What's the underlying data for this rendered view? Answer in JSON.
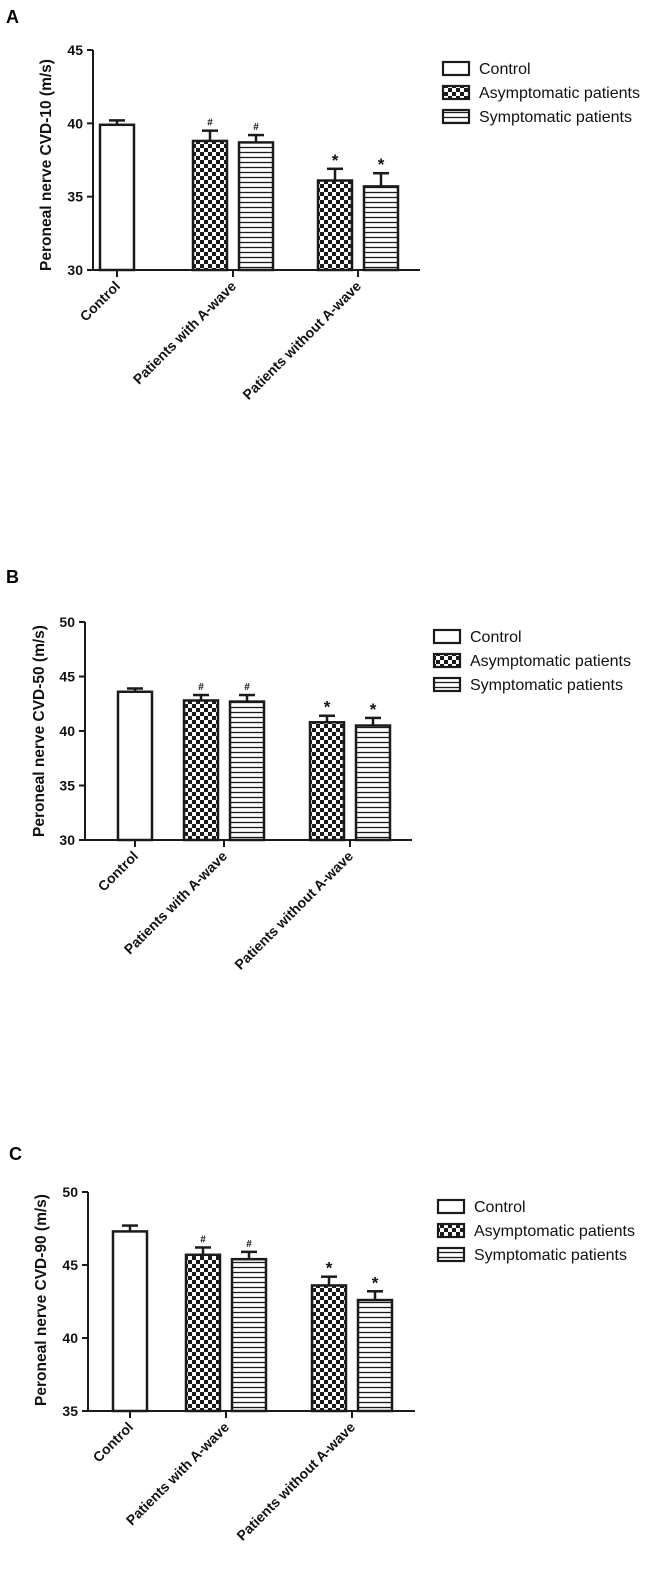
{
  "colors": {
    "stroke": "#1a1a1a",
    "fill_control": "#ffffff",
    "fill_pattern_bg": "#ffffff"
  },
  "chart_data": [
    {
      "panel": "A",
      "type": "bar",
      "ylabel": "Peroneal nerve CVD-10 (m/s)",
      "ylim": [
        30,
        45
      ],
      "yticks": [
        30,
        35,
        40,
        45
      ],
      "categories": [
        "Control",
        "Patients with A-wave",
        "Patients without A-wave"
      ],
      "legend": [
        "Control",
        "Asymptomatic patients",
        "Symptomatic patients"
      ],
      "legend_position": "top-right",
      "series": [
        {
          "group": "Control",
          "bars": [
            {
              "name": "Control",
              "pattern": "white",
              "value": 39.9,
              "err": 0.3,
              "annot": ""
            }
          ]
        },
        {
          "group": "Patients with A-wave",
          "bars": [
            {
              "name": "Asymptomatic patients",
              "pattern": "checker",
              "value": 38.8,
              "err": 0.7,
              "annot": "#"
            },
            {
              "name": "Symptomatic patients",
              "pattern": "hlines",
              "value": 38.7,
              "err": 0.5,
              "annot": "#"
            }
          ]
        },
        {
          "group": "Patients without A-wave",
          "bars": [
            {
              "name": "Asymptomatic patients",
              "pattern": "checker",
              "value": 36.1,
              "err": 0.8,
              "annot": "*"
            },
            {
              "name": "Symptomatic patients",
              "pattern": "hlines",
              "value": 35.7,
              "err": 0.9,
              "annot": "*"
            }
          ]
        }
      ]
    },
    {
      "panel": "B",
      "type": "bar",
      "ylabel": "Peroneal nerve CVD-50 (m/s)",
      "ylim": [
        30,
        50
      ],
      "yticks": [
        30,
        35,
        40,
        45,
        50
      ],
      "categories": [
        "Control",
        "Patients with A-wave",
        "Patients without A-wave"
      ],
      "legend": [
        "Control",
        "Asymptomatic patients",
        "Symptomatic patients"
      ],
      "legend_position": "top-right",
      "series": [
        {
          "group": "Control",
          "bars": [
            {
              "name": "Control",
              "pattern": "white",
              "value": 43.6,
              "err": 0.3,
              "annot": ""
            }
          ]
        },
        {
          "group": "Patients with A-wave",
          "bars": [
            {
              "name": "Asymptomatic patients",
              "pattern": "checker",
              "value": 42.8,
              "err": 0.5,
              "annot": "#"
            },
            {
              "name": "Symptomatic patients",
              "pattern": "hlines",
              "value": 42.7,
              "err": 0.6,
              "annot": "#"
            }
          ]
        },
        {
          "group": "Patients without A-wave",
          "bars": [
            {
              "name": "Asymptomatic patients",
              "pattern": "checker",
              "value": 40.8,
              "err": 0.6,
              "annot": "*"
            },
            {
              "name": "Symptomatic patients",
              "pattern": "hlines",
              "value": 40.5,
              "err": 0.7,
              "annot": "*"
            }
          ]
        }
      ]
    },
    {
      "panel": "C",
      "type": "bar",
      "ylabel": "Peroneal nerve CVD-90 (m/s)",
      "ylim": [
        35,
        50
      ],
      "yticks": [
        35,
        40,
        45,
        50
      ],
      "categories": [
        "Control",
        "Patients with A-wave",
        "Patients without A-wave"
      ],
      "legend": [
        "Control",
        "Asymptomatic patients",
        "Symptomatic patients"
      ],
      "legend_position": "top-right",
      "series": [
        {
          "group": "Control",
          "bars": [
            {
              "name": "Control",
              "pattern": "white",
              "value": 47.3,
              "err": 0.4,
              "annot": ""
            }
          ]
        },
        {
          "group": "Patients with A-wave",
          "bars": [
            {
              "name": "Asymptomatic patients",
              "pattern": "checker",
              "value": 45.7,
              "err": 0.5,
              "annot": "#"
            },
            {
              "name": "Symptomatic patients",
              "pattern": "hlines",
              "value": 45.4,
              "err": 0.5,
              "annot": "#"
            }
          ]
        },
        {
          "group": "Patients without A-wave",
          "bars": [
            {
              "name": "Asymptomatic patients",
              "pattern": "checker",
              "value": 43.6,
              "err": 0.6,
              "annot": "*"
            },
            {
              "name": "Symptomatic patients",
              "pattern": "hlines",
              "value": 42.6,
              "err": 0.6,
              "annot": "*"
            }
          ]
        }
      ]
    }
  ]
}
